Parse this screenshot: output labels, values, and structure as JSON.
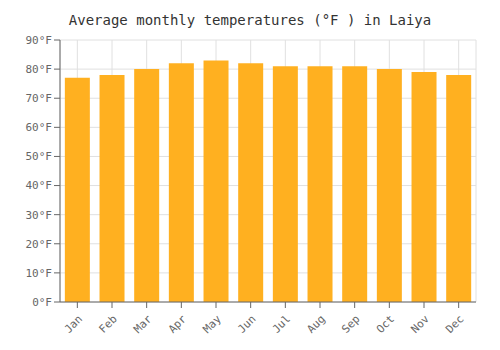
{
  "chart_data": {
    "type": "bar",
    "title": "Average monthly temperatures (°F ) in Laiya",
    "categories": [
      "Jan",
      "Feb",
      "Mar",
      "Apr",
      "May",
      "Jun",
      "Jul",
      "Aug",
      "Sep",
      "Oct",
      "Nov",
      "Dec"
    ],
    "values": [
      77,
      78,
      80,
      82,
      83,
      82,
      81,
      81,
      81,
      80,
      79,
      78
    ],
    "color": "#FFB020",
    "ylim": [
      0,
      90
    ],
    "yticks": [
      {
        "value": 0,
        "label": "0°F"
      },
      {
        "value": 10,
        "label": "10°F"
      },
      {
        "value": 20,
        "label": "20°F"
      },
      {
        "value": 30,
        "label": "30°F"
      },
      {
        "value": 40,
        "label": "40°F"
      },
      {
        "value": 50,
        "label": "50°F"
      },
      {
        "value": 60,
        "label": "60°F"
      },
      {
        "value": 70,
        "label": "70°F"
      },
      {
        "value": 80,
        "label": "80°F"
      },
      {
        "value": 90,
        "label": "90°F"
      }
    ],
    "grid": true
  }
}
